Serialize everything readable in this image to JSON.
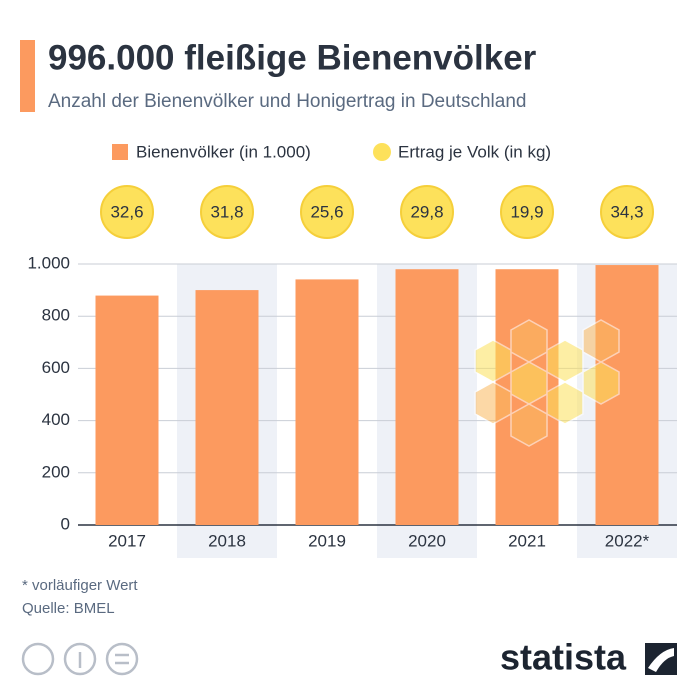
{
  "chart_data": {
    "type": "bar",
    "title": "996.000 fleißige Bienenvölker",
    "subtitle": "Anzahl der Bienenvölker und Honigertrag in Deutschland",
    "categories": [
      "2017",
      "2018",
      "2019",
      "2020",
      "2021",
      "2022*"
    ],
    "series": [
      {
        "name": "Bienenvölker (in 1.000)",
        "color": "#fc9a5f",
        "values": [
          879,
          900,
          941,
          980,
          980,
          996
        ]
      },
      {
        "name": "Ertrag je Volk (in kg)",
        "color": "#fde15b",
        "values": [
          32.6,
          31.8,
          25.6,
          29.8,
          19.9,
          34.3
        ],
        "value_labels": [
          "32,6",
          "31,8",
          "25,6",
          "29,8",
          "19,9",
          "34,3"
        ]
      }
    ],
    "ylim": [
      0,
      1000
    ],
    "yticks": [
      0,
      200,
      400,
      600,
      800,
      {
        "value": 1000,
        "label": "1.000"
      }
    ],
    "grid": true,
    "footnote": "* vorläufiger Wert",
    "source": "Quelle: BMEL",
    "brand": "statista"
  }
}
